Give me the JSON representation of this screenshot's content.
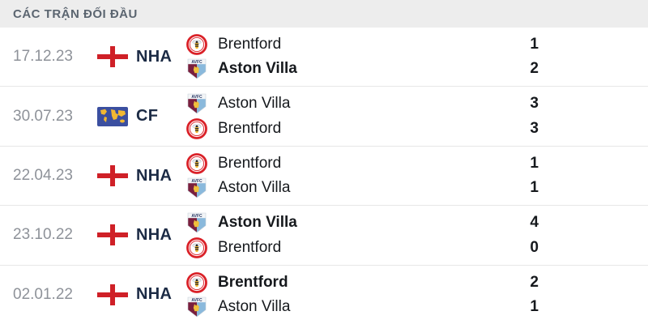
{
  "header": {
    "title": "CÁC TRẬN ĐỐI ĐẦU"
  },
  "colors": {
    "header_bg": "#ededed",
    "header_text": "#5b6570",
    "date_text": "#8e9299",
    "competition_text": "#1c2b45",
    "team_text": "#16191d",
    "divider": "#e7e7e7",
    "england_cross_red": "#cf2027",
    "world_flag_blue": "#3b4fa0",
    "world_flag_yellow": "#f2b832",
    "brentford_red": "#da2128",
    "villa_claret": "#7a1f3d",
    "villa_blue": "#8ab9dc",
    "villa_yellow": "#f0c03c"
  },
  "rows": [
    {
      "date": "17.12.23",
      "competition": "NHA",
      "flag": "england-flag-icon",
      "teams": [
        {
          "name": "Brentford",
          "logo_icon": "brentford-logo-icon",
          "score": "1",
          "winner": false
        },
        {
          "name": "Aston Villa",
          "logo_icon": "aston-villa-logo-icon",
          "score": "2",
          "winner": true
        }
      ]
    },
    {
      "date": "30.07.23",
      "competition": "CF",
      "flag": "world-flag-icon",
      "teams": [
        {
          "name": "Aston Villa",
          "logo_icon": "aston-villa-logo-icon",
          "score": "3",
          "winner": false
        },
        {
          "name": "Brentford",
          "logo_icon": "brentford-logo-icon",
          "score": "3",
          "winner": false
        }
      ]
    },
    {
      "date": "22.04.23",
      "competition": "NHA",
      "flag": "england-flag-icon",
      "teams": [
        {
          "name": "Brentford",
          "logo_icon": "brentford-logo-icon",
          "score": "1",
          "winner": false
        },
        {
          "name": "Aston Villa",
          "logo_icon": "aston-villa-logo-icon",
          "score": "1",
          "winner": false
        }
      ]
    },
    {
      "date": "23.10.22",
      "competition": "NHA",
      "flag": "england-flag-icon",
      "teams": [
        {
          "name": "Aston Villa",
          "logo_icon": "aston-villa-logo-icon",
          "score": "4",
          "winner": true
        },
        {
          "name": "Brentford",
          "logo_icon": "brentford-logo-icon",
          "score": "0",
          "winner": false
        }
      ]
    },
    {
      "date": "02.01.22",
      "competition": "NHA",
      "flag": "england-flag-icon",
      "teams": [
        {
          "name": "Brentford",
          "logo_icon": "brentford-logo-icon",
          "score": "2",
          "winner": true
        },
        {
          "name": "Aston Villa",
          "logo_icon": "aston-villa-logo-icon",
          "score": "1",
          "winner": false
        }
      ]
    }
  ]
}
